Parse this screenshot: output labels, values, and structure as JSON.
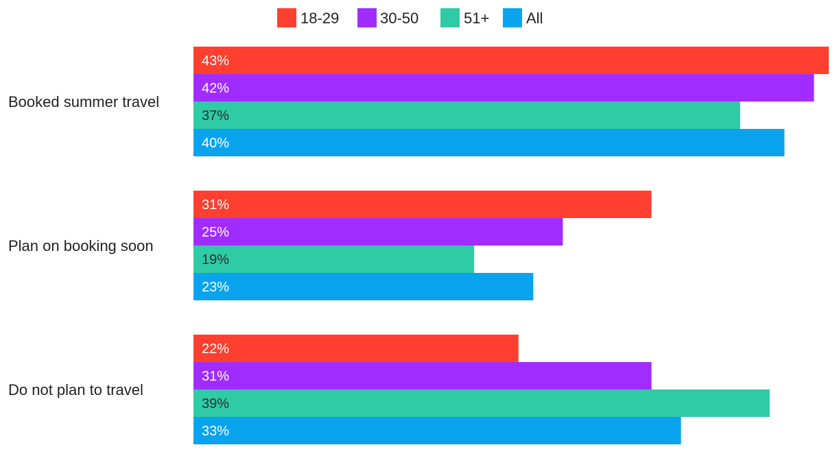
{
  "chart_data": {
    "type": "bar",
    "orientation": "horizontal",
    "categories": [
      "Booked summer travel",
      "Plan on booking soon",
      "Do not plan to travel"
    ],
    "series": [
      {
        "name": "18-29",
        "color": "#ff3f2f",
        "label_color": "#ffffff",
        "values": [
          43,
          31,
          22
        ],
        "labels": [
          "43%",
          "31%",
          "22%"
        ]
      },
      {
        "name": "30-50",
        "color": "#a12cff",
        "label_color": "#ffffff",
        "values": [
          42,
          25,
          31
        ],
        "labels": [
          "42%",
          "25%",
          "31%"
        ]
      },
      {
        "name": "51+",
        "color": "#2fcaa6",
        "label_color": "#2d2d2d",
        "values": [
          37,
          19,
          39
        ],
        "labels": [
          "37%",
          "19%",
          "39%"
        ]
      },
      {
        "name": "All",
        "color": "#0aa4ee",
        "label_color": "#ffffff",
        "values": [
          40,
          23,
          33
        ],
        "labels": [
          "40%",
          "23%",
          "33%"
        ]
      }
    ],
    "xlim": [
      0,
      43
    ],
    "grid": false,
    "legend_position": "top-center",
    "title": "",
    "xlabel": "",
    "ylabel": ""
  }
}
